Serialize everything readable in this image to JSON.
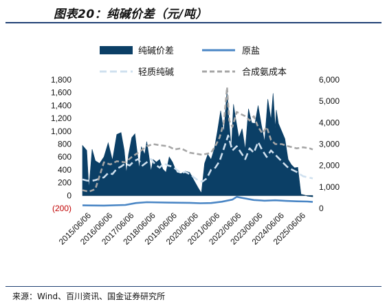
{
  "header": {
    "title": "图表20：纯碱价差（元/吨）"
  },
  "footer": {
    "source": "来源：Wind、百川资讯、国金证券研究所"
  },
  "colors": {
    "spread": "#0b3f66",
    "salt": "#4a86c5",
    "light_soda": "#cfe0ef",
    "ammonia": "#a6a6a6",
    "negative_tick": "#c00000"
  },
  "chart_data": {
    "type": "area",
    "legend_position": "top",
    "grid": false,
    "x_tick_labels": [
      "2015/06/06",
      "2016/06/06",
      "2017/06/06",
      "2018/06/06",
      "2019/06/06",
      "2020/06/06",
      "2021/06/06",
      "2022/06/06",
      "2023/06/06",
      "2024/06/06",
      "2025/06/06"
    ],
    "x_range": [
      2015.0,
      2025.75
    ],
    "y_left": {
      "ticks": [
        "(200)",
        "0",
        "200",
        "400",
        "600",
        "800",
        "1,000",
        "1,200",
        "1,400",
        "1,600",
        "1,800"
      ],
      "range": [
        -200,
        1800
      ]
    },
    "y_right": {
      "ticks": [
        "0",
        "1,000",
        "2,000",
        "3,000",
        "4,000",
        "5,000",
        "6,000"
      ],
      "range": [
        0,
        6000
      ]
    },
    "series": [
      {
        "name": "纯碱价差",
        "axis": "left",
        "style": "area",
        "x": [
          2015.0,
          2015.1,
          2015.2,
          2015.3,
          2015.45,
          2015.6,
          2015.8,
          2016.0,
          2016.2,
          2016.4,
          2016.6,
          2016.8,
          2016.95,
          2017.05,
          2017.15,
          2017.3,
          2017.45,
          2017.55,
          2017.65,
          2017.75,
          2017.9,
          2018.0,
          2018.1,
          2018.2,
          2018.3,
          2018.45,
          2018.6,
          2018.75,
          2018.9,
          2019.05,
          2019.2,
          2019.4,
          2019.6,
          2019.8,
          2020.0,
          2020.2,
          2020.4,
          2020.55,
          2020.7,
          2020.85,
          2021.0,
          2021.15,
          2021.3,
          2021.45,
          2021.6,
          2021.75,
          2021.85,
          2021.95,
          2022.05,
          2022.15,
          2022.3,
          2022.45,
          2022.6,
          2022.75,
          2022.9,
          2023.05,
          2023.2,
          2023.35,
          2023.5,
          2023.65,
          2023.8,
          2023.9,
          2024.0,
          2024.05,
          2024.15,
          2024.3,
          2024.45,
          2024.6,
          2024.75,
          2024.9,
          2025.05,
          2025.2,
          2025.35,
          2025.5,
          2025.75
        ],
        "y": [
          780,
          740,
          700,
          110,
          720,
          540,
          500,
          600,
          820,
          550,
          950,
          980,
          700,
          350,
          640,
          900,
          960,
          680,
          420,
          760,
          640,
          840,
          620,
          380,
          560,
          520,
          560,
          410,
          360,
          600,
          520,
          360,
          340,
          380,
          360,
          240,
          120,
          40,
          500,
          640,
          560,
          720,
          1000,
          1320,
          980,
          1660,
          1100,
          730,
          1420,
          1200,
          900,
          1040,
          720,
          1350,
          1130,
          1120,
          1400,
          1100,
          840,
          1500,
          1180,
          1590,
          1050,
          1330,
          1120,
          1000,
          880,
          560,
          480,
          430,
          440,
          20,
          10,
          -10,
          -20
        ]
      },
      {
        "name": "原盐",
        "axis": "right",
        "style": "line",
        "x": [
          2015.0,
          2016.0,
          2017.0,
          2017.5,
          2018.0,
          2019.0,
          2020.0,
          2020.5,
          2021.0,
          2021.5,
          2022.0,
          2022.2,
          2022.5,
          2023.0,
          2023.5,
          2024.0,
          2024.5,
          2025.0,
          2025.5,
          2025.75
        ],
        "y": [
          140,
          130,
          160,
          250,
          290,
          270,
          260,
          240,
          250,
          310,
          410,
          540,
          480,
          390,
          360,
          380,
          350,
          330,
          320,
          300
        ]
      },
      {
        "name": "轻质纯碱",
        "axis": "right",
        "style": "dashed",
        "x": [
          2015.0,
          2015.2,
          2015.4,
          2015.6,
          2016.0,
          2016.2,
          2016.4,
          2016.6,
          2016.8,
          2017.0,
          2017.2,
          2017.4,
          2017.6,
          2017.8,
          2018.0,
          2018.2,
          2018.4,
          2018.6,
          2018.8,
          2019.0,
          2019.2,
          2019.4,
          2019.6,
          2019.8,
          2020.0,
          2020.2,
          2020.4,
          2020.6,
          2020.8,
          2021.0,
          2021.2,
          2021.4,
          2021.6,
          2021.8,
          2022.0,
          2022.2,
          2022.4,
          2022.6,
          2022.8,
          2023.0,
          2023.2,
          2023.4,
          2023.6,
          2023.8,
          2024.0,
          2024.2,
          2024.4,
          2024.6,
          2024.8,
          2025.0,
          2025.3,
          2025.75
        ],
        "y": [
          1350,
          1300,
          1280,
          1320,
          1450,
          1650,
          1600,
          1850,
          1950,
          2100,
          2000,
          2200,
          2300,
          2000,
          2150,
          2300,
          2050,
          1900,
          2100,
          2000,
          1950,
          1800,
          1650,
          1700,
          1600,
          1450,
          1300,
          1250,
          1400,
          1800,
          1900,
          2200,
          2800,
          3400,
          2700,
          2900,
          2600,
          2300,
          2800,
          2600,
          3100,
          2700,
          2400,
          2700,
          2500,
          2300,
          2100,
          1900,
          1800,
          1700,
          1500,
          1400
        ]
      },
      {
        "name": "合成氨成本",
        "axis": "right",
        "style": "dashed",
        "x": [
          2015.0,
          2015.3,
          2015.6,
          2016.0,
          2016.3,
          2016.6,
          2017.0,
          2017.3,
          2017.6,
          2018.0,
          2018.3,
          2018.6,
          2019.0,
          2019.3,
          2019.6,
          2020.0,
          2020.3,
          2020.6,
          2021.0,
          2021.2,
          2021.4,
          2021.6,
          2021.75,
          2021.85,
          2022.0,
          2022.2,
          2022.4,
          2022.6,
          2022.8,
          2023.0,
          2023.2,
          2023.4,
          2023.6,
          2023.8,
          2024.0,
          2024.3,
          2024.6,
          2025.0,
          2025.3,
          2025.6,
          2025.75
        ],
        "y": [
          850,
          780,
          900,
          2150,
          2050,
          2200,
          2150,
          2400,
          2600,
          2900,
          3000,
          2950,
          2900,
          2750,
          2800,
          2600,
          2550,
          2500,
          2600,
          2900,
          3300,
          4000,
          5650,
          4100,
          3800,
          4500,
          4400,
          4300,
          4100,
          4300,
          3800,
          3500,
          3800,
          3200,
          3000,
          3000,
          2900,
          2800,
          2850,
          2800,
          2750
        ]
      }
    ]
  }
}
